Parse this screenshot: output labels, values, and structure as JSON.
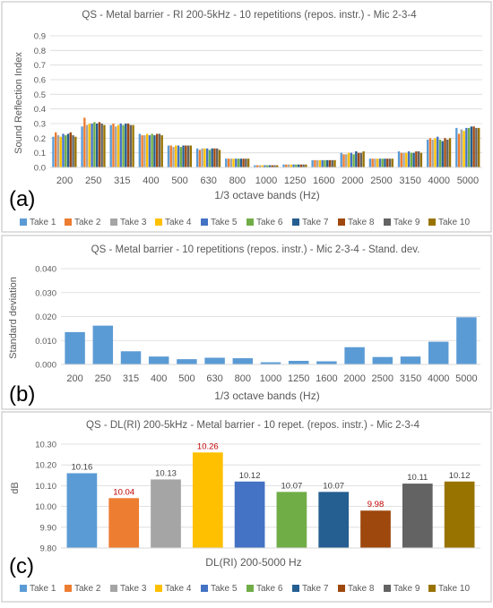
{
  "colors": {
    "take1": "#5b9bd5",
    "take2": "#ed7d31",
    "take3": "#a5a5a5",
    "take4": "#ffc000",
    "take5": "#4472c4",
    "take6": "#70ad47",
    "take7": "#255e91",
    "take8": "#9e480e",
    "take9": "#636363",
    "take10": "#997300",
    "std_bar": "#5b9bd5",
    "data_label_panel_c": "#c00000",
    "data_label_panel_c_default": "#404040",
    "axis_text": "#595959",
    "grid": "#d9d9d9",
    "panel_border": "#bfbfbf"
  },
  "panels": {
    "a": {
      "letter": "(a)"
    },
    "b": {
      "letter": "(b)"
    },
    "c": {
      "letter": "(c)"
    }
  },
  "legend": {
    "items": [
      "Take 1",
      "Take 2",
      "Take 3",
      "Take 4",
      "Take 5",
      "Take 6",
      "Take 7",
      "Take 8",
      "Take 9",
      "Take 10"
    ]
  },
  "chart_data": [
    {
      "id": "a",
      "type": "bar",
      "title": "QS - Metal barrier - RI 200-5kHz - 10 repetitions (repos. instr.) - Mic 2-3-4",
      "xlabel": "1/3 octave bands (Hz)",
      "ylabel": "Sound Reflection Index",
      "ylim": [
        0,
        0.9
      ],
      "yticks": [
        "0.0",
        "0.1",
        "0.2",
        "0.3",
        "0.4",
        "0.5",
        "0.6",
        "0.7",
        "0.8",
        "0.9"
      ],
      "grid": true,
      "legend_position": "bottom",
      "categories": [
        "200",
        "250",
        "315",
        "400",
        "500",
        "630",
        "800",
        "1000",
        "1250",
        "1600",
        "2000",
        "2500",
        "3150",
        "4000",
        "5000"
      ],
      "series": [
        {
          "name": "Take 1",
          "values": [
            0.21,
            0.28,
            0.29,
            0.23,
            0.15,
            0.13,
            0.06,
            0.015,
            0.02,
            0.05,
            0.1,
            0.06,
            0.11,
            0.19,
            0.27
          ]
        },
        {
          "name": "Take 2",
          "values": [
            0.24,
            0.34,
            0.3,
            0.22,
            0.15,
            0.12,
            0.06,
            0.015,
            0.02,
            0.05,
            0.09,
            0.06,
            0.1,
            0.2,
            0.23
          ]
        },
        {
          "name": "Take 3",
          "values": [
            0.22,
            0.29,
            0.28,
            0.22,
            0.14,
            0.13,
            0.06,
            0.015,
            0.02,
            0.05,
            0.09,
            0.06,
            0.1,
            0.19,
            0.26
          ]
        },
        {
          "name": "Take 4",
          "values": [
            0.21,
            0.3,
            0.29,
            0.23,
            0.15,
            0.13,
            0.06,
            0.015,
            0.02,
            0.05,
            0.1,
            0.06,
            0.1,
            0.2,
            0.25
          ]
        },
        {
          "name": "Take 5",
          "values": [
            0.23,
            0.3,
            0.3,
            0.22,
            0.15,
            0.13,
            0.06,
            0.015,
            0.02,
            0.05,
            0.1,
            0.06,
            0.11,
            0.21,
            0.27
          ]
        },
        {
          "name": "Take 6",
          "values": [
            0.22,
            0.31,
            0.29,
            0.23,
            0.14,
            0.12,
            0.06,
            0.015,
            0.02,
            0.05,
            0.09,
            0.06,
            0.1,
            0.19,
            0.27
          ]
        },
        {
          "name": "Take 7",
          "values": [
            0.23,
            0.3,
            0.3,
            0.22,
            0.15,
            0.13,
            0.06,
            0.015,
            0.02,
            0.05,
            0.11,
            0.06,
            0.1,
            0.18,
            0.28
          ]
        },
        {
          "name": "Take 8",
          "values": [
            0.24,
            0.31,
            0.3,
            0.23,
            0.15,
            0.13,
            0.06,
            0.015,
            0.02,
            0.05,
            0.1,
            0.06,
            0.11,
            0.2,
            0.28
          ]
        },
        {
          "name": "Take 9",
          "values": [
            0.22,
            0.3,
            0.29,
            0.23,
            0.15,
            0.13,
            0.06,
            0.015,
            0.02,
            0.05,
            0.1,
            0.06,
            0.11,
            0.19,
            0.27
          ]
        },
        {
          "name": "Take 10",
          "values": [
            0.21,
            0.29,
            0.29,
            0.22,
            0.15,
            0.12,
            0.06,
            0.015,
            0.02,
            0.05,
            0.11,
            0.06,
            0.1,
            0.2,
            0.27
          ]
        }
      ]
    },
    {
      "id": "b",
      "type": "bar",
      "title": "QS - Metal barrier - 10 repetitions (repos. instr.) - Mic 2-3-4 - Stand. dev.",
      "xlabel": "1/3 octave bands (Hz)",
      "ylabel": "Standard deviation",
      "ylim": [
        0,
        0.04
      ],
      "yticks": [
        "0.000",
        "0.010",
        "0.020",
        "0.030",
        "0.040"
      ],
      "grid": true,
      "categories": [
        "200",
        "250",
        "315",
        "400",
        "500",
        "630",
        "800",
        "1000",
        "1250",
        "1600",
        "2000",
        "2500",
        "3150",
        "4000",
        "5000"
      ],
      "values": [
        0.0135,
        0.0162,
        0.0055,
        0.0033,
        0.0022,
        0.0028,
        0.0026,
        0.0009,
        0.0015,
        0.0013,
        0.0072,
        0.0031,
        0.0033,
        0.0095,
        0.0197
      ]
    },
    {
      "id": "c",
      "type": "bar",
      "title": "QS - DL(RI) 200-5kHz - Metal barrier - 10 repet. (repos. instr.) - Mic 2-3-4",
      "xlabel": "DL(RI) 200-5000 Hz",
      "ylabel": "dB",
      "ylim": [
        9.8,
        10.3
      ],
      "yticks": [
        "9.80",
        "9.90",
        "10.00",
        "10.10",
        "10.20",
        "10.30"
      ],
      "grid": true,
      "legend_position": "bottom",
      "series": [
        {
          "name": "Take 1",
          "value": 10.16,
          "label": "10.16"
        },
        {
          "name": "Take 2",
          "value": 10.04,
          "label": "10.04"
        },
        {
          "name": "Take 3",
          "value": 10.13,
          "label": "10.13"
        },
        {
          "name": "Take 4",
          "value": 10.26,
          "label": "10.26"
        },
        {
          "name": "Take 5",
          "value": 10.12,
          "label": "10.12"
        },
        {
          "name": "Take 6",
          "value": 10.07,
          "label": "10.07"
        },
        {
          "name": "Take 7",
          "value": 10.07,
          "label": "10.07"
        },
        {
          "name": "Take 8",
          "value": 9.98,
          "label": "9.98"
        },
        {
          "name": "Take 9",
          "value": 10.11,
          "label": "10.11"
        },
        {
          "name": "Take 10",
          "value": 10.12,
          "label": "10.12"
        }
      ],
      "red_labels": [
        "Take 2",
        "Take 4",
        "Take 8"
      ]
    }
  ]
}
